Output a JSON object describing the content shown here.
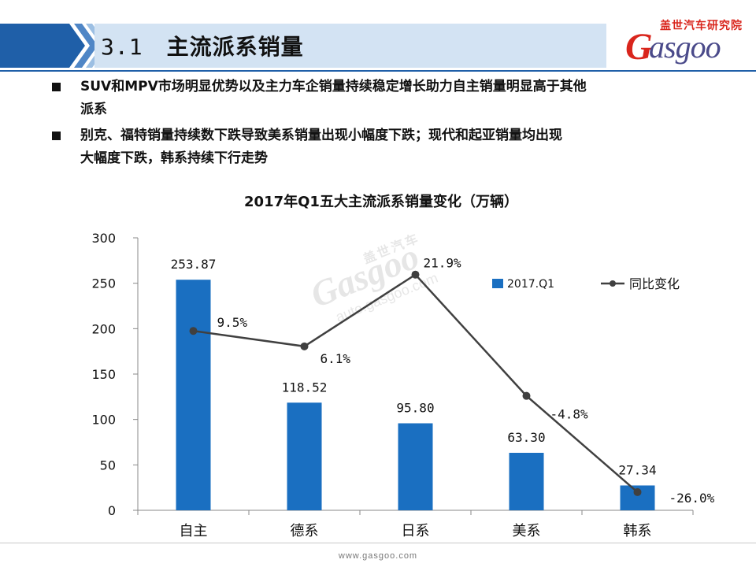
{
  "header": {
    "section_number": "3.1",
    "title": "主流派系销量",
    "band_colors": [
      "#1f5fa8",
      "#4f86c6",
      "#9cbfe3",
      "#d3e3f3"
    ]
  },
  "logo": {
    "cn": "盖世汽车研究院",
    "en_initial": "G",
    "en_rest": "asgoo"
  },
  "bullets": [
    {
      "line1": "SUV和MPV市场明显优势以及主力车企销量持续稳定增长助力自主销量明显高于其他",
      "line2": "派系"
    },
    {
      "line1": "别克、福特销量持续数下跌导致美系销量出现小幅度下跌；现代和起亚销量均出现",
      "line2": "大幅度下跌，韩系持续下行走势"
    }
  ],
  "chart_data": {
    "type": "bar",
    "title": "2017年Q1五大主流派系销量变化（万辆）",
    "categories": [
      "自主",
      "德系",
      "日系",
      "美系",
      "韩系"
    ],
    "series": [
      {
        "name": "2017.Q1",
        "type": "bar",
        "color": "#1a6fc1",
        "values": [
          253.87,
          118.52,
          95.8,
          63.3,
          27.34
        ],
        "labels": [
          "253.87",
          "118.52",
          "95.80",
          "63.30",
          "27.34"
        ]
      },
      {
        "name": "同比变化",
        "type": "line",
        "color": "#404040",
        "values": [
          9.5,
          6.1,
          21.9,
          -4.8,
          -26.0
        ],
        "labels": [
          "9.5%",
          "6.1%",
          "21.9%",
          "-4.8%",
          "-26.0%"
        ]
      }
    ],
    "y_ticks": [
      "0",
      "50",
      "100",
      "150",
      "200",
      "250",
      "300"
    ],
    "ylim": [
      0,
      300
    ],
    "y2lim": [
      -30,
      30
    ],
    "grid": false,
    "legend_position": "top-right"
  },
  "watermark": {
    "cn": "盖世汽车",
    "brand": "Gasgoo",
    "url": "auto.gasgoo.com"
  },
  "footer": {
    "url": "www.gasgoo.com"
  }
}
